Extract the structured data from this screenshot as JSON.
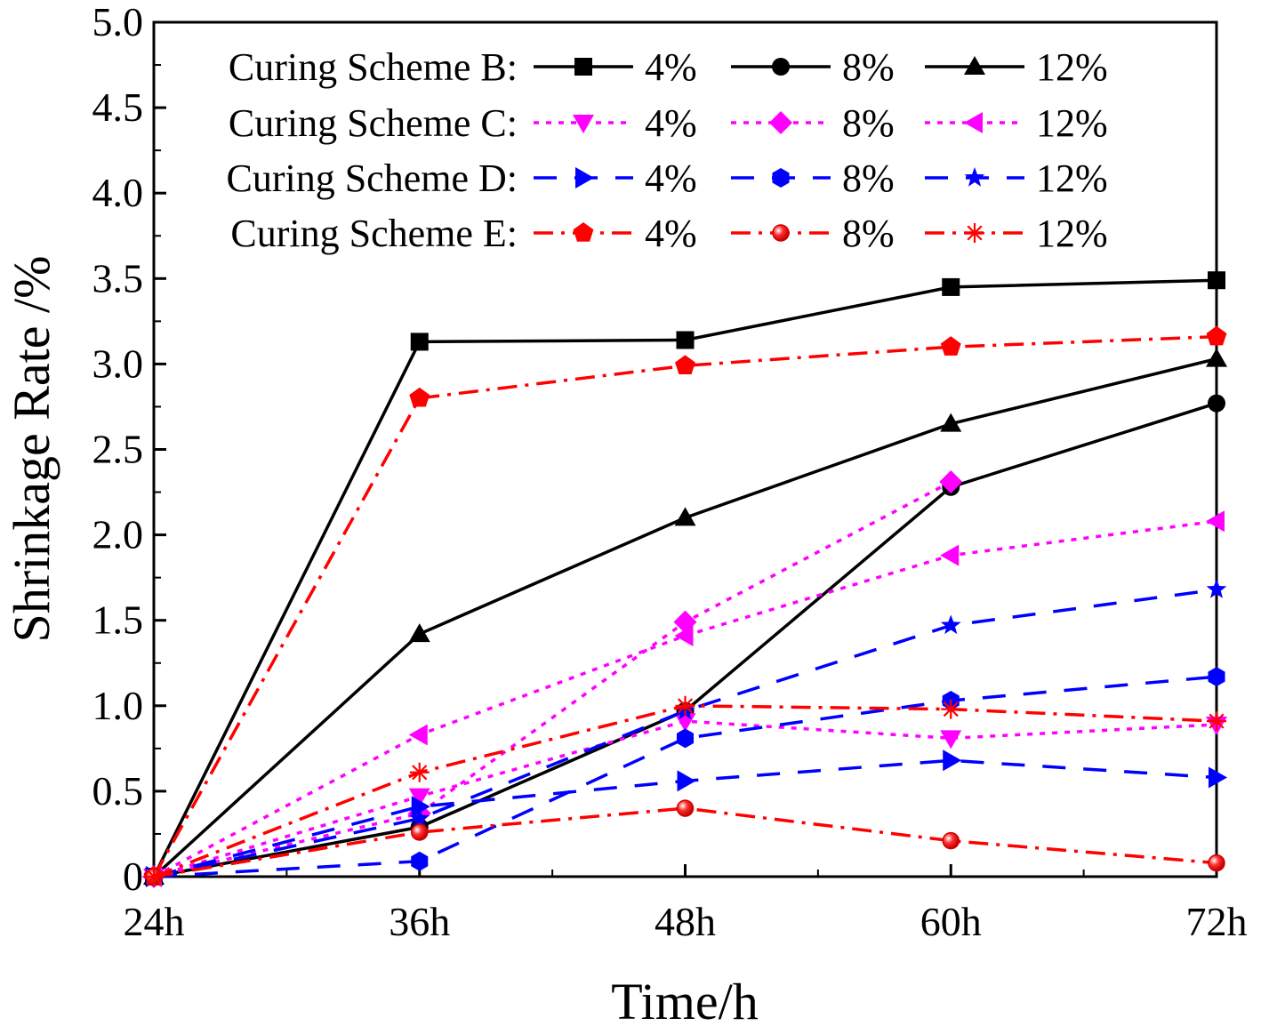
{
  "chart_data": {
    "type": "line",
    "title": "",
    "xlabel": "Time/h",
    "ylabel": "Shrinkage Rate /%",
    "categories": [
      "24h",
      "36h",
      "48h",
      "60h",
      "72h"
    ],
    "ylim": [
      0,
      5.0
    ],
    "yticks": [
      0,
      0.5,
      1.0,
      1.5,
      2.0,
      2.5,
      3.0,
      3.5,
      4.0,
      4.5,
      5.0
    ],
    "ytick_labels": [
      "0",
      "0.5",
      "1.0",
      "1.5",
      "2.0",
      "2.5",
      "3.0",
      "3.5",
      "4.0",
      "4.5",
      "5.0"
    ],
    "legend_location": "top",
    "legend_groups": [
      {
        "label": "Curing Scheme B:",
        "series": [
          0,
          1,
          2
        ]
      },
      {
        "label": "Curing Scheme C:",
        "series": [
          3,
          4,
          5
        ]
      },
      {
        "label": "Curing Scheme D:",
        "series": [
          6,
          7,
          8
        ]
      },
      {
        "label": "Curing Scheme E:",
        "series": [
          9,
          10,
          11
        ]
      }
    ],
    "series": [
      {
        "name": "4%",
        "scheme": "B",
        "color": "#000000",
        "dash": "solid",
        "marker": "square",
        "values": [
          0,
          3.13,
          3.14,
          3.45,
          3.49
        ]
      },
      {
        "name": "8%",
        "scheme": "B",
        "color": "#000000",
        "dash": "solid",
        "marker": "circle",
        "values": [
          0,
          0.29,
          0.97,
          2.28,
          2.77
        ]
      },
      {
        "name": "12%",
        "scheme": "B",
        "color": "#000000",
        "dash": "solid",
        "marker": "triangle-up",
        "values": [
          0,
          1.42,
          2.1,
          2.65,
          3.03
        ]
      },
      {
        "name": "4%",
        "scheme": "C",
        "color": "#ff00ff",
        "dash": "dot",
        "marker": "triangle-down",
        "values": [
          0,
          0.47,
          0.91,
          0.81,
          0.89
        ]
      },
      {
        "name": "8%",
        "scheme": "C",
        "color": "#ff00ff",
        "dash": "dot",
        "marker": "diamond",
        "values": [
          0,
          0.37,
          1.49,
          2.31,
          null
        ]
      },
      {
        "name": "12%",
        "scheme": "C",
        "color": "#ff00ff",
        "dash": "dot",
        "marker": "triangle-left",
        "values": [
          0,
          0.83,
          1.41,
          1.88,
          2.08
        ]
      },
      {
        "name": "4%",
        "scheme": "D",
        "color": "#0000ff",
        "dash": "dash",
        "marker": "triangle-right",
        "values": [
          0,
          0.41,
          0.56,
          0.68,
          0.58
        ]
      },
      {
        "name": "8%",
        "scheme": "D",
        "color": "#0000ff",
        "dash": "dash",
        "marker": "hexagon",
        "values": [
          0,
          0.09,
          0.81,
          1.03,
          1.17
        ]
      },
      {
        "name": "12%",
        "scheme": "D",
        "color": "#0000ff",
        "dash": "dash",
        "marker": "star",
        "values": [
          0,
          0.34,
          0.97,
          1.47,
          1.68
        ]
      },
      {
        "name": "4%",
        "scheme": "E",
        "color": "#ff0000",
        "dash": "dashdot",
        "marker": "pentagon",
        "values": [
          0,
          2.8,
          2.99,
          3.1,
          3.16
        ]
      },
      {
        "name": "8%",
        "scheme": "E",
        "color": "#ff0000",
        "dash": "dashdot",
        "marker": "sphere",
        "values": [
          0,
          0.26,
          0.4,
          0.21,
          0.08
        ]
      },
      {
        "name": "12%",
        "scheme": "E",
        "color": "#ff0000",
        "dash": "dashdot",
        "marker": "asterisk",
        "values": [
          0,
          0.61,
          1.0,
          0.98,
          0.91
        ]
      }
    ]
  }
}
